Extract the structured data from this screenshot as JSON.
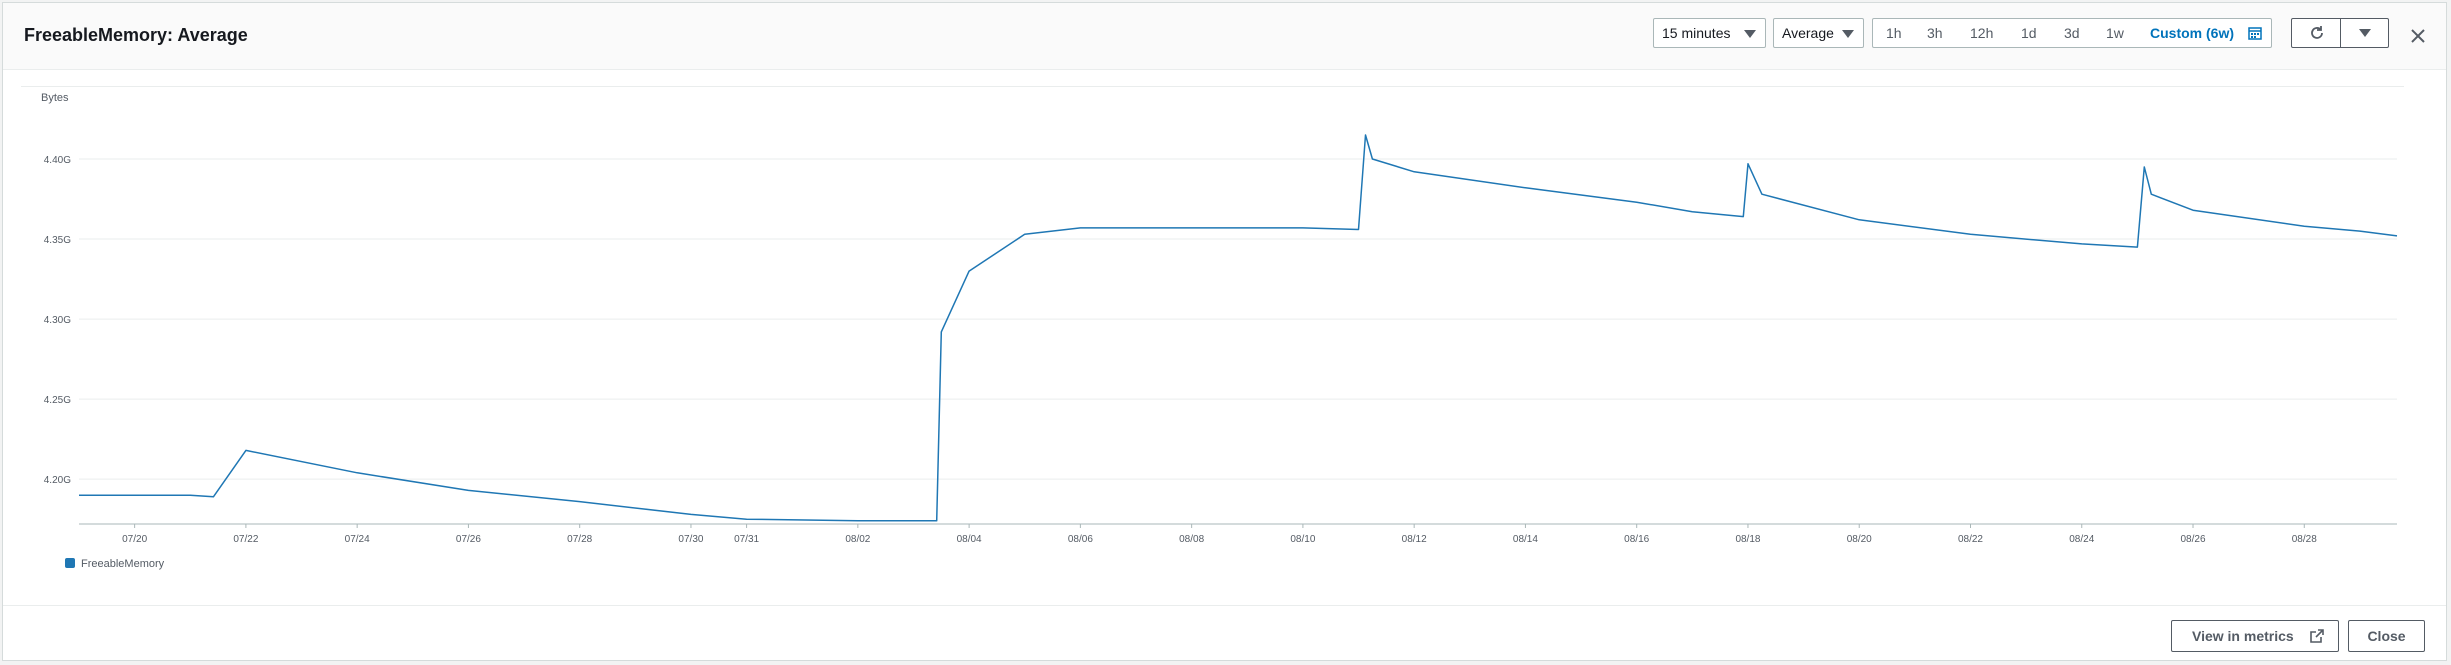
{
  "header": {
    "title": "FreeableMemory: Average",
    "period_select": "15 minutes",
    "stat_select": "Average",
    "ranges": [
      "1h",
      "3h",
      "12h",
      "1d",
      "3d",
      "1w"
    ],
    "custom_range": "Custom (6w)"
  },
  "footer": {
    "view_in_metrics": "View in metrics",
    "close": "Close"
  },
  "colors": {
    "series": "#1f77b4",
    "accent": "#0073bb"
  },
  "icons": [
    "caret-down-icon",
    "calendar-icon",
    "refresh-icon",
    "close-icon",
    "external-link-icon"
  ],
  "chart_data": {
    "type": "line",
    "ylabel": "Bytes",
    "yticks": [
      "4.20G",
      "4.25G",
      "4.30G",
      "4.35G",
      "4.40G"
    ],
    "ylim": [
      4.172,
      4.42
    ],
    "xlim": [
      "07/19",
      "08/29 16:00"
    ],
    "xticks": [
      "07/20",
      "07/22",
      "07/24",
      "07/26",
      "07/28",
      "07/30",
      "07/31",
      "08/02",
      "08/04",
      "08/06",
      "08/08",
      "08/10",
      "08/12",
      "08/14",
      "08/16",
      "08/18",
      "08/20",
      "08/22",
      "08/24",
      "08/26",
      "08/28"
    ],
    "legend": {
      "position": "bottom-left",
      "entries": [
        "FreeableMemory"
      ]
    },
    "grid": true,
    "series": [
      {
        "name": "FreeableMemory",
        "x": [
          "07/19",
          "07/20",
          "07/21",
          "07/21 10:00",
          "07/22",
          "07/24",
          "07/26",
          "07/28",
          "07/30",
          "07/31",
          "08/02",
          "08/03",
          "08/03 10:00",
          "08/03 12:00",
          "08/04",
          "08/05",
          "08/06",
          "08/08",
          "08/10",
          "08/11",
          "08/11 03:00",
          "08/11 06:00",
          "08/12",
          "08/14",
          "08/16",
          "08/17",
          "08/17 22:00",
          "08/18",
          "08/18 06:00",
          "08/20",
          "08/22",
          "08/24",
          "08/25",
          "08/25 03:00",
          "08/25 06:00",
          "08/26",
          "08/28",
          "08/29",
          "08/29 16:00"
        ],
        "values": [
          4.19,
          4.19,
          4.19,
          4.189,
          4.218,
          4.204,
          4.193,
          4.186,
          4.178,
          4.175,
          4.174,
          4.174,
          4.174,
          4.292,
          4.33,
          4.353,
          4.357,
          4.357,
          4.357,
          4.356,
          4.415,
          4.4,
          4.392,
          4.382,
          4.373,
          4.367,
          4.364,
          4.397,
          4.378,
          4.362,
          4.353,
          4.347,
          4.345,
          4.395,
          4.378,
          4.368,
          4.358,
          4.355,
          4.352
        ]
      }
    ]
  }
}
